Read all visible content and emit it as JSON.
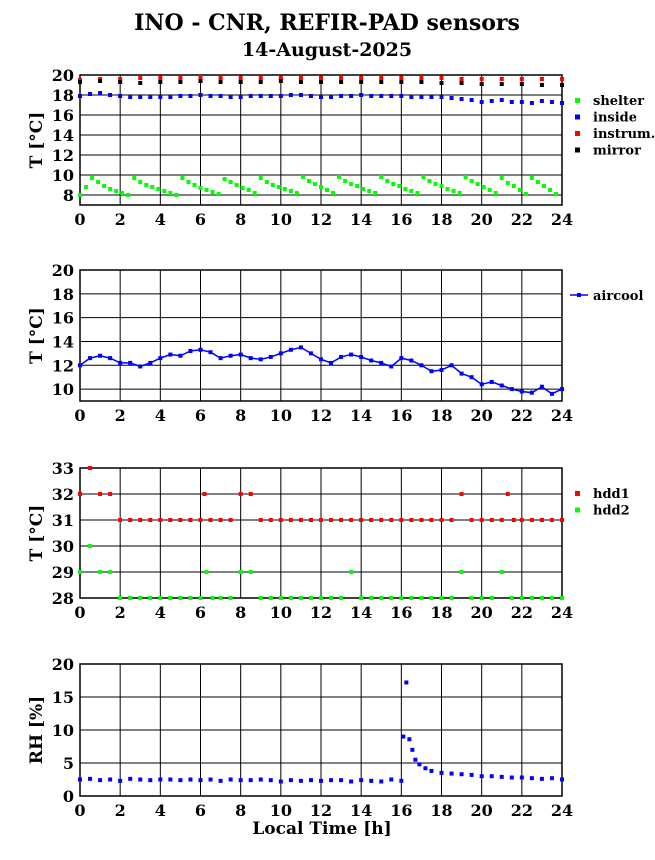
{
  "title": "INO - CNR, REFIR-PAD sensors",
  "subtitle": "14-August-2025",
  "xlabel": "Local Time [h]",
  "chart_data": [
    {
      "type": "scatter",
      "ylabel": "T [°C]",
      "xlim": [
        0,
        24
      ],
      "ylim": [
        7,
        20
      ],
      "xticks": [
        0,
        2,
        4,
        6,
        8,
        10,
        12,
        14,
        16,
        18,
        20,
        22,
        24
      ],
      "yticks": [
        8,
        10,
        12,
        14,
        16,
        18,
        20
      ],
      "grid": true,
      "legend_position": "right",
      "series": [
        {
          "name": "shelter",
          "color": "#00ff00",
          "x": [
            0,
            0.3,
            0.6,
            0.9,
            1.2,
            1.5,
            1.8,
            2.1,
            2.4,
            2.7,
            3.0,
            3.3,
            3.6,
            3.9,
            4.2,
            4.5,
            4.8,
            5.1,
            5.4,
            5.7,
            6.0,
            6.3,
            6.6,
            6.9,
            7.2,
            7.5,
            7.8,
            8.1,
            8.4,
            8.7,
            9.0,
            9.3,
            9.6,
            9.9,
            10.2,
            10.5,
            10.8,
            11.1,
            11.4,
            11.7,
            12.0,
            12.3,
            12.6,
            12.9,
            13.2,
            13.5,
            13.8,
            14.1,
            14.4,
            14.7,
            15.0,
            15.3,
            15.6,
            15.9,
            16.2,
            16.5,
            16.8,
            17.1,
            17.4,
            17.7,
            18.0,
            18.3,
            18.6,
            18.9,
            19.2,
            19.5,
            19.8,
            20.1,
            20.4,
            20.7,
            21.0,
            21.3,
            21.6,
            21.9,
            22.2,
            22.5,
            22.8,
            23.1,
            23.4,
            23.7
          ],
          "y": [
            8.0,
            8.8,
            9.7,
            9.3,
            8.9,
            8.6,
            8.4,
            8.2,
            8.0,
            9.7,
            9.3,
            9.0,
            8.8,
            8.6,
            8.4,
            8.2,
            8.0,
            9.7,
            9.3,
            9.0,
            8.7,
            8.5,
            8.3,
            8.1,
            9.6,
            9.3,
            9.0,
            8.7,
            8.5,
            8.2,
            9.7,
            9.3,
            9.0,
            8.8,
            8.6,
            8.4,
            8.2,
            9.8,
            9.4,
            9.1,
            8.8,
            8.5,
            8.2,
            9.8,
            9.4,
            9.1,
            8.9,
            8.6,
            8.4,
            8.2,
            9.8,
            9.4,
            9.1,
            8.9,
            8.6,
            8.4,
            8.2,
            9.8,
            9.4,
            9.1,
            8.9,
            8.6,
            8.4,
            8.2,
            9.8,
            9.4,
            9.1,
            8.8,
            8.5,
            8.2,
            9.7,
            9.2,
            8.9,
            8.5,
            8.1,
            9.7,
            9.3,
            8.9,
            8.5,
            8.1
          ]
        },
        {
          "name": "inside",
          "color": "#0000ff",
          "x": [
            0,
            0.5,
            1.0,
            1.5,
            2.0,
            2.5,
            3.0,
            3.5,
            4.0,
            4.5,
            5.0,
            5.5,
            6.0,
            6.5,
            7.0,
            7.5,
            8.0,
            8.5,
            9.0,
            9.5,
            10.0,
            10.5,
            11.0,
            11.5,
            12.0,
            12.5,
            13.0,
            13.5,
            14.0,
            14.5,
            15.0,
            15.5,
            16.0,
            16.5,
            17.0,
            17.5,
            18.0,
            18.5,
            19.0,
            19.5,
            20.0,
            20.5,
            21.0,
            21.5,
            22.0,
            22.5,
            23.0,
            23.5,
            24.0
          ],
          "y": [
            17.9,
            18.1,
            18.2,
            18.0,
            17.9,
            17.8,
            17.8,
            17.8,
            17.8,
            17.8,
            17.9,
            17.9,
            18.0,
            17.9,
            17.9,
            17.8,
            17.8,
            17.9,
            17.9,
            17.9,
            17.9,
            18.0,
            18.0,
            17.9,
            17.8,
            17.8,
            17.9,
            17.9,
            18.0,
            17.9,
            17.9,
            17.9,
            17.9,
            17.8,
            17.8,
            17.8,
            17.8,
            17.7,
            17.6,
            17.5,
            17.3,
            17.4,
            17.5,
            17.3,
            17.3,
            17.2,
            17.4,
            17.3,
            17.2
          ]
        },
        {
          "name": "instrum.",
          "color": "#ff0000",
          "x": [
            0,
            1,
            2,
            3,
            4,
            5,
            6,
            7,
            8,
            9,
            10,
            11,
            12,
            13,
            14,
            15,
            16,
            17,
            18,
            19,
            20,
            21,
            22,
            23,
            24
          ],
          "y": [
            19.5,
            19.6,
            19.6,
            19.7,
            19.7,
            19.7,
            19.8,
            19.7,
            19.7,
            19.7,
            19.7,
            19.7,
            19.7,
            19.7,
            19.7,
            19.7,
            19.7,
            19.7,
            19.7,
            19.6,
            19.6,
            19.6,
            19.6,
            19.6,
            19.6
          ]
        },
        {
          "name": "mirror",
          "color": "#000000",
          "x": [
            0,
            1,
            2,
            3,
            4,
            5,
            6,
            7,
            8,
            9,
            10,
            11,
            12,
            13,
            14,
            15,
            16,
            17,
            18,
            19,
            20,
            21,
            22,
            23,
            24
          ],
          "y": [
            19.3,
            19.4,
            19.3,
            19.2,
            19.3,
            19.3,
            19.4,
            19.3,
            19.3,
            19.3,
            19.4,
            19.3,
            19.3,
            19.3,
            19.3,
            19.3,
            19.3,
            19.3,
            19.2,
            19.2,
            19.1,
            19.1,
            19.1,
            19.0,
            19.0
          ]
        }
      ]
    },
    {
      "type": "line",
      "ylabel": "T [°C]",
      "xlim": [
        0,
        24
      ],
      "ylim": [
        9,
        20
      ],
      "xticks": [
        0,
        2,
        4,
        6,
        8,
        10,
        12,
        14,
        16,
        18,
        20,
        22,
        24
      ],
      "yticks": [
        10,
        12,
        14,
        16,
        18,
        20
      ],
      "grid": true,
      "legend_position": "right",
      "series": [
        {
          "name": "aircool",
          "color": "#0000ff",
          "x": [
            0,
            0.5,
            1.0,
            1.5,
            2.0,
            2.5,
            3.0,
            3.5,
            4.0,
            4.5,
            5.0,
            5.5,
            6.0,
            6.5,
            7.0,
            7.5,
            8.0,
            8.5,
            9.0,
            9.5,
            10.0,
            10.5,
            11.0,
            11.5,
            12.0,
            12.5,
            13.0,
            13.5,
            14.0,
            14.5,
            15.0,
            15.5,
            16.0,
            16.5,
            17.0,
            17.5,
            18.0,
            18.5,
            19.0,
            19.5,
            20.0,
            20.5,
            21.0,
            21.5,
            22.0,
            22.5,
            23.0,
            23.5,
            24.0
          ],
          "y": [
            12.0,
            12.6,
            12.8,
            12.6,
            12.2,
            12.2,
            11.9,
            12.2,
            12.6,
            12.9,
            12.8,
            13.2,
            13.3,
            13.1,
            12.6,
            12.8,
            12.9,
            12.6,
            12.5,
            12.7,
            13.0,
            13.3,
            13.5,
            13.0,
            12.5,
            12.2,
            12.7,
            12.9,
            12.7,
            12.4,
            12.2,
            11.9,
            12.6,
            12.4,
            12.0,
            11.5,
            11.6,
            12.0,
            11.3,
            11.0,
            10.4,
            10.6,
            10.3,
            10.0,
            9.8,
            9.7,
            10.2,
            9.6,
            10.0
          ]
        }
      ]
    },
    {
      "type": "scatter",
      "ylabel": "T [°C]",
      "xlim": [
        0,
        24
      ],
      "ylim": [
        28,
        33
      ],
      "xticks": [
        0,
        2,
        4,
        6,
        8,
        10,
        12,
        14,
        16,
        18,
        20,
        22,
        24
      ],
      "yticks": [
        28,
        29,
        30,
        31,
        32,
        33
      ],
      "grid": true,
      "legend_position": "right",
      "series": [
        {
          "name": "hdd1",
          "color": "#ff0000",
          "x": [
            0.0,
            0.5,
            1.0,
            1.5,
            2.0,
            2.5,
            3.0,
            3.5,
            4.0,
            4.5,
            5.0,
            5.5,
            6.0,
            6.2,
            6.5,
            7.0,
            7.5,
            8.0,
            8.5,
            9.0,
            9.5,
            10.0,
            10.5,
            11.0,
            11.5,
            12.0,
            12.5,
            13.0,
            13.5,
            14.0,
            14.5,
            15.0,
            15.5,
            16.0,
            16.5,
            17.0,
            17.5,
            18.0,
            18.5,
            19.0,
            19.5,
            20.0,
            20.5,
            21.0,
            21.3,
            21.6,
            22.0,
            22.5,
            23.0,
            23.5,
            24.0
          ],
          "y": [
            32,
            33,
            32,
            32,
            31,
            31,
            31,
            31,
            31,
            31,
            31,
            31,
            31,
            32,
            31,
            31,
            31,
            32,
            32,
            31,
            31,
            31,
            31,
            31,
            31,
            31,
            31,
            31,
            31,
            31,
            31,
            31,
            31,
            31,
            31,
            31,
            31,
            31,
            31,
            32,
            31,
            31,
            31,
            31,
            32,
            31,
            31,
            31,
            31,
            31,
            31
          ]
        },
        {
          "name": "hdd2",
          "color": "#00ff00",
          "x": [
            0.0,
            0.5,
            1.0,
            1.5,
            2.0,
            2.5,
            3.0,
            3.5,
            4.0,
            4.5,
            5.0,
            5.5,
            6.0,
            6.3,
            6.6,
            7.0,
            7.5,
            8.0,
            8.5,
            9.0,
            9.5,
            10.0,
            10.5,
            11.0,
            11.5,
            12.0,
            12.5,
            13.0,
            13.5,
            14.0,
            14.5,
            15.0,
            15.5,
            16.0,
            16.5,
            17.0,
            17.5,
            18.0,
            18.5,
            19.0,
            19.5,
            20.0,
            20.5,
            21.0,
            21.5,
            22.0,
            22.5,
            23.0,
            23.5,
            24.0
          ],
          "y": [
            29,
            30,
            29,
            29,
            28,
            28,
            28,
            28,
            28,
            28,
            28,
            28,
            28,
            29,
            28,
            28,
            28,
            29,
            29,
            28,
            28,
            28,
            28,
            28,
            28,
            28,
            28,
            28,
            29,
            28,
            28,
            28,
            28,
            28,
            28,
            28,
            28,
            28,
            28,
            29,
            28,
            28,
            28,
            29,
            28,
            28,
            28,
            28,
            28,
            28
          ]
        }
      ]
    },
    {
      "type": "scatter",
      "ylabel": "RH [%]",
      "xlim": [
        0,
        24
      ],
      "ylim": [
        0,
        20
      ],
      "xticks": [
        0,
        2,
        4,
        6,
        8,
        10,
        12,
        14,
        16,
        18,
        20,
        22,
        24
      ],
      "yticks": [
        0,
        5,
        10,
        15,
        20
      ],
      "grid": true,
      "series": [
        {
          "name": "",
          "color": "#0000ff",
          "x": [
            0,
            0.5,
            1.0,
            1.5,
            2.0,
            2.5,
            3.0,
            3.5,
            4.0,
            4.5,
            5.0,
            5.5,
            6.0,
            6.5,
            7.0,
            7.5,
            8.0,
            8.5,
            9.0,
            9.5,
            10.0,
            10.5,
            11.0,
            11.5,
            12.0,
            12.5,
            13.0,
            13.5,
            14.0,
            14.5,
            15.0,
            15.5,
            16.0,
            16.1,
            16.25,
            16.4,
            16.55,
            16.7,
            16.9,
            17.2,
            17.5,
            18.0,
            18.5,
            19.0,
            19.5,
            20.0,
            20.5,
            21.0,
            21.5,
            22.0,
            22.5,
            23.0,
            23.5,
            24.0
          ],
          "y": [
            2.5,
            2.6,
            2.4,
            2.5,
            2.3,
            2.6,
            2.5,
            2.4,
            2.5,
            2.5,
            2.4,
            2.5,
            2.4,
            2.5,
            2.3,
            2.5,
            2.4,
            2.4,
            2.5,
            2.4,
            2.2,
            2.4,
            2.3,
            2.4,
            2.3,
            2.4,
            2.4,
            2.2,
            2.4,
            2.3,
            2.2,
            2.5,
            2.3,
            9.0,
            17.2,
            8.6,
            7.0,
            5.5,
            4.8,
            4.2,
            3.8,
            3.5,
            3.4,
            3.3,
            3.2,
            3.0,
            3.0,
            2.9,
            2.8,
            2.8,
            2.7,
            2.6,
            2.7,
            2.5
          ]
        }
      ]
    }
  ]
}
